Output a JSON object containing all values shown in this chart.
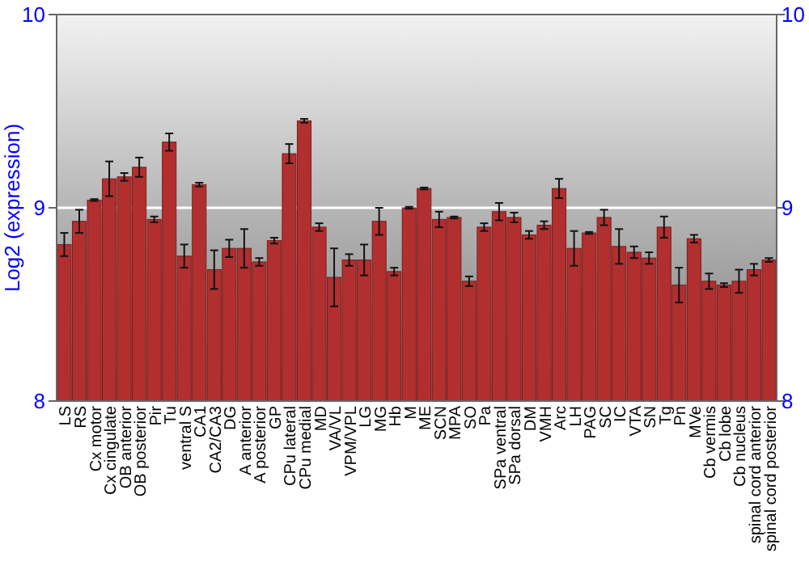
{
  "chart_data": {
    "type": "bar",
    "ylabel": "Log2 (expression)",
    "categories": [
      "LS",
      "RS",
      "Cx motor",
      "Cx cingulate",
      "OB anterior",
      "OB posterior",
      "Pir",
      "Tu",
      "ventral S",
      "CA1",
      "CA2/CA3",
      "DG",
      "A anterior",
      "A posterior",
      "GP",
      "CPu lateral",
      "CPu medial",
      "MD",
      "VA/VL",
      "VPM/VPL",
      "LG",
      "MG",
      "Hb",
      "M",
      "ME",
      "SCN",
      "MPA",
      "SO",
      "Pa",
      "SPa ventral",
      "SPa dorsal",
      "DM",
      "VMH",
      "Arc",
      "LH",
      "PAG",
      "SC",
      "IC",
      "VTA",
      "SN",
      "Tg",
      "Pn",
      "MVe",
      "Cb vermis",
      "Cb lobe",
      "Cb nucleus",
      "spinal cord anterior",
      "spinal cord posterior"
    ],
    "values": [
      8.81,
      8.93,
      9.04,
      9.15,
      9.16,
      9.21,
      8.94,
      9.34,
      8.75,
      9.12,
      8.68,
      8.79,
      8.79,
      8.72,
      8.83,
      9.28,
      9.45,
      8.9,
      8.64,
      8.73,
      8.73,
      8.93,
      8.67,
      9.0,
      9.1,
      8.94,
      8.95,
      8.62,
      8.9,
      8.98,
      8.95,
      8.86,
      8.91,
      9.1,
      8.79,
      8.87,
      8.95,
      8.8,
      8.77,
      8.74,
      8.9,
      8.6,
      8.84,
      8.62,
      8.6,
      8.62,
      8.68,
      8.73
    ],
    "errors": [
      0.06,
      0.06,
      0.005,
      0.09,
      0.02,
      0.05,
      0.015,
      0.045,
      0.06,
      0.01,
      0.1,
      0.045,
      0.1,
      0.02,
      0.015,
      0.05,
      0.01,
      0.02,
      0.15,
      0.03,
      0.08,
      0.07,
      0.02,
      0.005,
      0.005,
      0.04,
      0.005,
      0.025,
      0.02,
      0.045,
      0.025,
      0.02,
      0.02,
      0.05,
      0.09,
      0.005,
      0.04,
      0.09,
      0.03,
      0.03,
      0.055,
      0.09,
      0.02,
      0.04,
      0.01,
      0.06,
      0.03,
      0.01
    ],
    "color": "#b22f2f",
    "ylim": [
      8,
      10
    ],
    "yticks": [
      8,
      9,
      10
    ],
    "y2lim": [
      8,
      10
    ],
    "y2ticks": [
      8,
      9,
      10
    ],
    "grid": "y"
  }
}
